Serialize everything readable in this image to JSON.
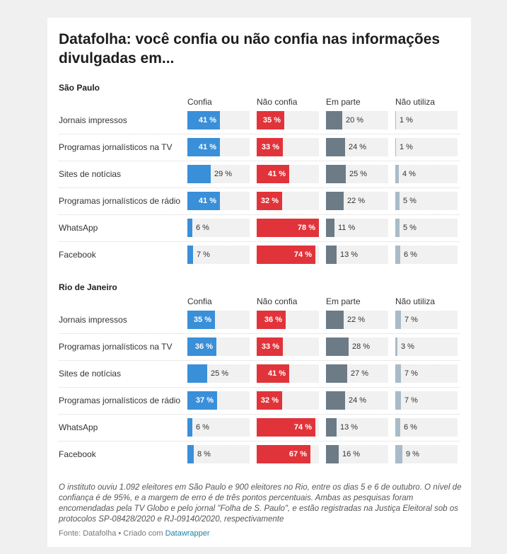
{
  "title": "Datafolha: você confia ou não confia nas informações divulgadas em...",
  "columns": [
    "Confia",
    "Não confia",
    "Em parte",
    "Não utiliza"
  ],
  "colors": {
    "confia": "#3a8fd9",
    "nao_confia": "#e0343a",
    "em_parte": "#6c7b86",
    "nao_utiliza": "#a9bbc8",
    "background_bar": "#f1f1f1"
  },
  "chart_data": [
    {
      "type": "bar",
      "title": "São Paulo",
      "categories": [
        "Jornais impressos",
        "Programas jornalísticos na TV",
        "Sites de notícias",
        "Programas jornalísticos de rádio",
        "WhatsApp",
        "Facebook"
      ],
      "series": [
        {
          "name": "Confia",
          "values": [
            41,
            41,
            29,
            41,
            6,
            7
          ]
        },
        {
          "name": "Não confia",
          "values": [
            35,
            33,
            41,
            32,
            78,
            74
          ]
        },
        {
          "name": "Em parte",
          "values": [
            20,
            24,
            25,
            22,
            11,
            13
          ]
        },
        {
          "name": "Não utiliza",
          "values": [
            1,
            1,
            4,
            5,
            5,
            6
          ]
        }
      ],
      "unit": " %",
      "ylim": [
        0,
        78
      ]
    },
    {
      "type": "bar",
      "title": "Rio de Janeiro",
      "categories": [
        "Jornais impressos",
        "Programas jornalísticos na TV",
        "Sites de notícias",
        "Programas jornalísticos de rádio",
        "WhatsApp",
        "Facebook"
      ],
      "series": [
        {
          "name": "Confia",
          "values": [
            35,
            36,
            25,
            37,
            6,
            8
          ]
        },
        {
          "name": "Não confia",
          "values": [
            36,
            33,
            41,
            32,
            74,
            67
          ]
        },
        {
          "name": "Em parte",
          "values": [
            22,
            28,
            27,
            24,
            13,
            16
          ]
        },
        {
          "name": "Não utiliza",
          "values": [
            7,
            3,
            7,
            7,
            6,
            9
          ]
        }
      ],
      "unit": " %",
      "ylim": [
        0,
        78
      ]
    }
  ],
  "notes": "O instituto ouviu 1.092 eleitores em São Paulo e 900 eleitores no Rio, entre os dias 5 e 6 de outubro. O nível de confiança é de 95%, e a margem de erro é de três pontos percentuais. Ambas as pesquisas foram encomendadas pela TV Globo e pelo jornal \"Folha de S. Paulo\", e estão registradas na Justiça Eleitoral sob os protocolos SP-08428/2020 e RJ-09140/2020, respectivamente",
  "source": {
    "prefix": "Fonte: Datafolha • Criado com ",
    "link": "Datawrapper"
  }
}
